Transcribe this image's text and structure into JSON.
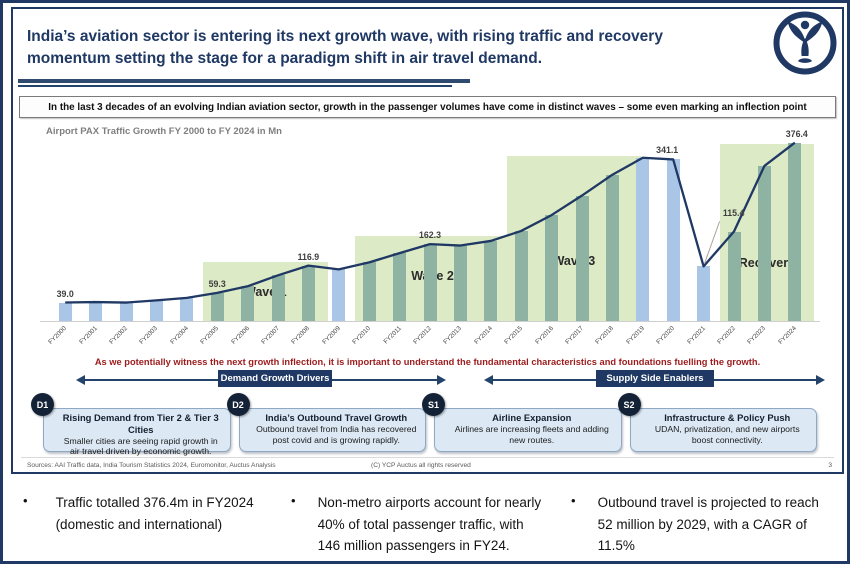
{
  "header": {
    "title": "India’s aviation sector is entering its next growth wave, with rising traffic and recovery momentum setting the stage for a paradigm shift in air travel demand.",
    "logo": "ycp-auctus-logo"
  },
  "banner": {
    "text": "In the last 3 decades of an evolving Indian aviation sector, growth in the passenger volumes have come in distinct waves – some even marking an inflection point"
  },
  "chart_data": {
    "type": "bar",
    "title": "Airport PAX Traffic Growth FY 2000 to FY 2024 in Mn",
    "categories": [
      "FY2000",
      "FY2001",
      "FY2002",
      "FY2003",
      "FY2004",
      "FY2005",
      "FY2006",
      "FY2007",
      "FY2008",
      "FY2009",
      "FY2010",
      "FY2011",
      "FY2012",
      "FY2013",
      "FY2014",
      "FY2015",
      "FY2016",
      "FY2017",
      "FY2018",
      "FY2019",
      "FY2020",
      "FY2021",
      "FY2022",
      "FY2023",
      "FY2024"
    ],
    "values": [
      39.0,
      40.0,
      38.9,
      43.6,
      48.8,
      59.3,
      73.3,
      96.4,
      116.9,
      108.9,
      123.7,
      143.3,
      162.3,
      159.3,
      169.0,
      190.1,
      223.6,
      264.9,
      308.8,
      344.7,
      341.1,
      115.4,
      188.9,
      327.3,
      376.4
    ],
    "unit": "Mn",
    "ylim": [
      0,
      380
    ],
    "grid": false,
    "legend": "none",
    "bar_color_default": "#A9C6E7",
    "bar_color_wave": "#8FB3A3",
    "region_color": "#DCEAC6",
    "line_color": "#1F3864",
    "label_color": "#3F3F3F",
    "labeled_points": [
      {
        "year": "FY2000",
        "label": "39.0"
      },
      {
        "year": "FY2005",
        "label": "59.3"
      },
      {
        "year": "FY2008",
        "label": "116.9"
      },
      {
        "year": "FY2012",
        "label": "162.3"
      },
      {
        "year": "FY2020",
        "label": "341.1",
        "dx": -6
      },
      {
        "year": "FY2021",
        "label": "115.4",
        "callout": true
      },
      {
        "year": "FY2024",
        "label": "376.4",
        "dx": 2
      }
    ],
    "regions": [
      {
        "label": "Wave 1",
        "start": "FY2005",
        "end": "FY2008",
        "top_value": 125,
        "label_offset": 22
      },
      {
        "label": "Wave 2",
        "start": "FY2010",
        "end": "FY2014",
        "top_value": 180,
        "label_offset": 38
      },
      {
        "label": "Wave 3",
        "start": "FY2015",
        "end": "FY2019",
        "top_value": 348,
        "label_offset": 53,
        "half_end": true
      },
      {
        "label": "Recovery",
        "start": "FY2022",
        "end": "FY2024",
        "top_value": 374,
        "label_offset": 51
      }
    ]
  },
  "note": {
    "text": "As we potentially witness the next growth inflection, it is important to understand the fundamental characteristics and foundations fuelling the growth."
  },
  "driver_groups": [
    {
      "label": "Demand Growth Drivers"
    },
    {
      "label": "Supply Side Enablers"
    }
  ],
  "cards": [
    {
      "badge": "D1",
      "title": "Rising Demand from Tier 2 & Tier 3 Cities",
      "body": "Smaller cities are seeing rapid growth in air travel driven by economic growth."
    },
    {
      "badge": "D2",
      "title": "India’s Outbound Travel Growth",
      "body": "Outbound travel from India has recovered post covid and is growing rapidly."
    },
    {
      "badge": "S1",
      "title": "Airline Expansion",
      "body": "Airlines are increasing fleets and adding new routes."
    },
    {
      "badge": "S2",
      "title": "Infrastructure & Policy Push",
      "body": "UDAN, privatization, and new airports boost connectivity."
    }
  ],
  "footer": {
    "sources": "Sources: AAI Traffic data, India Tourism Statistics 2024, Euromonitor, Auctus Analysis",
    "copyright": "(C) YCP Auctus all rights reserved",
    "page": "3"
  },
  "takeaways": [
    "Traffic totalled 376.4m in FY2024 (domestic and international)",
    "Non-metro airports account for nearly 40% of total passenger traffic, with 146 million passengers in FY24.",
    "Outbound travel is projected to reach 52 million by 2029, with a CAGR of 11.5%"
  ],
  "colors": {
    "navy": "#1F3864",
    "red_note": "#9C1B1C",
    "bar_blue": "#A9C6E7",
    "bar_teal": "#8FB3A3",
    "region_green": "#DCEAC6",
    "card_bg": "#DCE8F4",
    "badge_bg": "#142238"
  }
}
